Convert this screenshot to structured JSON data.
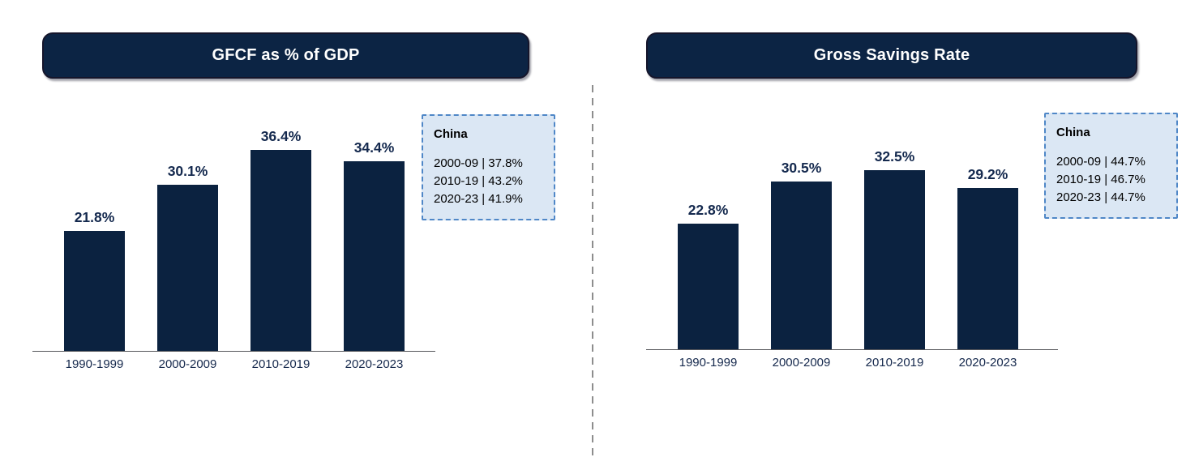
{
  "page": {
    "background": "#ffffff"
  },
  "colors": {
    "bar_navy": "#0b2240",
    "banner_navy": "#0c2444",
    "label_navy": "#14294e",
    "callout_fill": "#dbe7f4",
    "callout_border": "#4f87c7",
    "axis_line": "#55565a",
    "divider_gray": "#8d8d8d"
  },
  "chart_data": [
    {
      "type": "bar",
      "title": "GFCF as % of GDP",
      "categories": [
        "1990-1999",
        "2000-2009",
        "2010-2019",
        "2020-2023"
      ],
      "values": [
        21.8,
        30.1,
        36.4,
        34.4
      ],
      "value_labels": [
        "21.8%",
        "30.1%",
        "36.4%",
        "34.4%"
      ],
      "unit": "%",
      "ylim": [
        0,
        41.6
      ],
      "grid": false,
      "bar_color": "#0b2240",
      "annotation": {
        "title": "China",
        "lines": [
          "2000-09 | 37.8%",
          "2010-19 | 43.2%",
          "2020-23 | 41.9%"
        ]
      }
    },
    {
      "type": "bar",
      "title": "Gross Savings Rate",
      "categories": [
        "1990-1999",
        "2000-2009",
        "2010-2019",
        "2020-2023"
      ],
      "values": [
        22.8,
        30.5,
        32.5,
        29.2
      ],
      "value_labels": [
        "22.8%",
        "30.5%",
        "32.5%",
        "29.2%"
      ],
      "unit": "%",
      "ylim": [
        0,
        41.6
      ],
      "grid": false,
      "bar_color": "#0b2240",
      "annotation": {
        "title": "China",
        "lines": [
          "2000-09 | 44.7%",
          "2010-19 | 46.7%",
          "2020-23 | 44.7%"
        ]
      }
    }
  ]
}
